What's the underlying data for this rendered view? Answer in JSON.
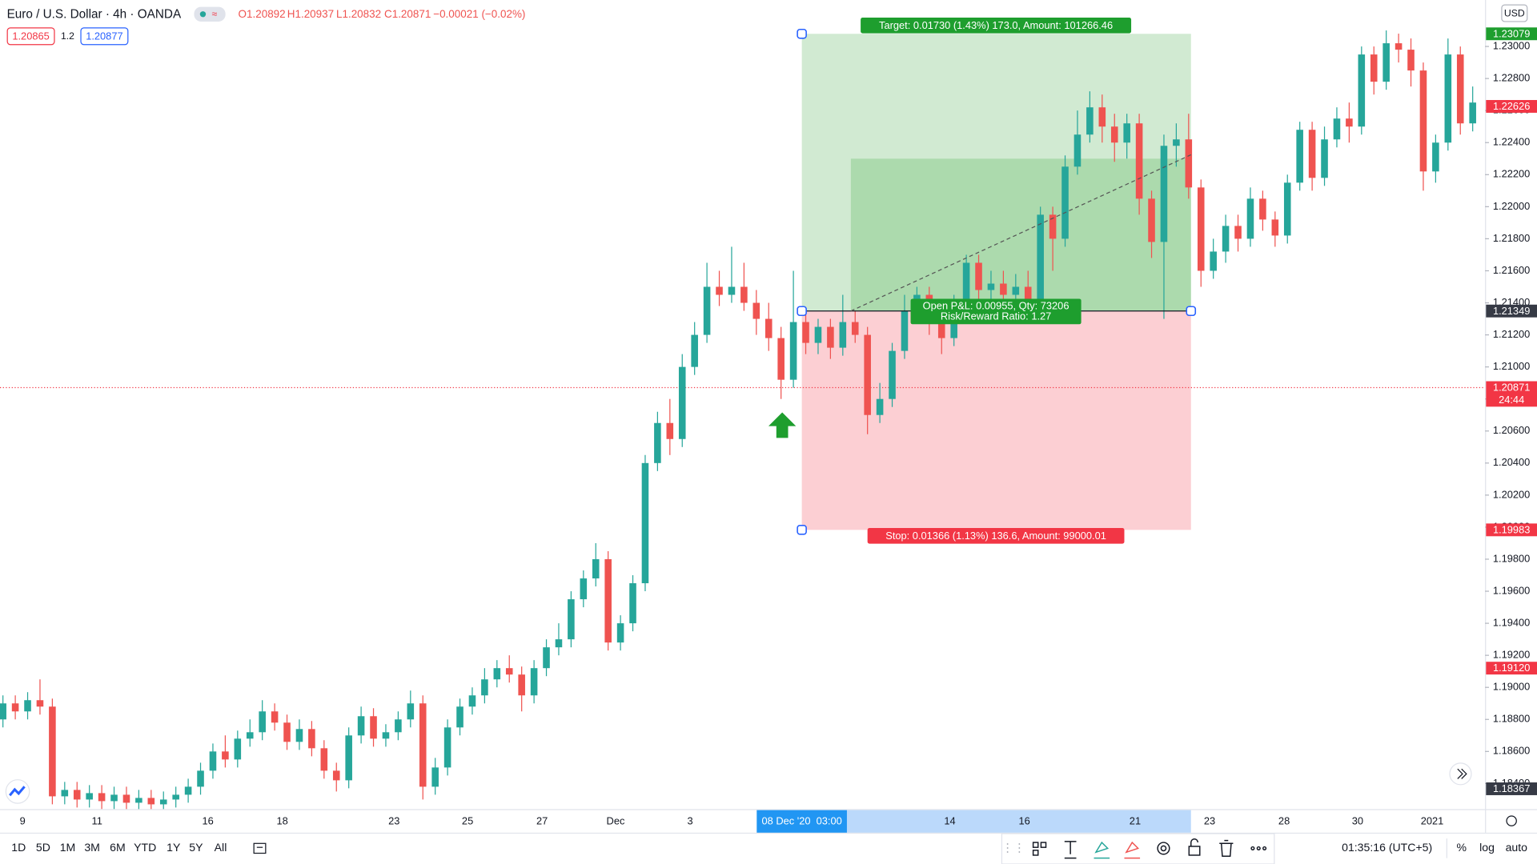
{
  "header": {
    "symbol": "Euro / U.S. Dollar · 4h · OANDA",
    "open": "O1.20892",
    "high": "H1.20937",
    "low": "L1.20832",
    "close": "C1.20871",
    "change": "−0.00021 (−0.02%)",
    "bid": "1.20865",
    "spread": "1.2",
    "ask": "1.20877"
  },
  "currency": "USD",
  "chart_data": {
    "type": "candlestick",
    "open": [
      1.188,
      1.189,
      1.1885,
      1.1892,
      1.1888,
      1.1832,
      1.1836,
      1.183,
      1.1834,
      1.1829,
      1.1833,
      1.1828,
      1.1831,
      1.1827,
      1.183,
      1.1833,
      1.1838,
      1.1848,
      1.186,
      1.1855,
      1.1868,
      1.1872,
      1.1885,
      1.1878,
      1.1866,
      1.1874,
      1.1862,
      1.1848,
      1.1842,
      1.187,
      1.1882,
      1.1868,
      1.1872,
      1.188,
      1.189,
      1.1838,
      1.185,
      1.1875,
      1.1888,
      1.1895,
      1.1905,
      1.1912,
      1.1908,
      1.1895,
      1.1912,
      1.1925,
      1.193,
      1.1955,
      1.1968,
      1.198,
      1.1928,
      1.194,
      1.1965,
      1.204,
      1.2065,
      1.2055,
      1.21,
      1.212,
      1.215,
      1.2145,
      1.215,
      1.214,
      1.213,
      1.2118,
      1.2092,
      1.2128,
      1.2115,
      1.2125,
      1.2112,
      1.2128,
      1.212,
      1.207,
      1.208,
      1.211,
      1.2135,
      1.2145,
      1.2128,
      1.2118,
      1.214,
      1.2165,
      1.2148,
      1.2152,
      1.2145,
      1.215,
      1.2142,
      1.2195,
      1.218,
      1.2225,
      1.2245,
      1.2262,
      1.225,
      1.224,
      1.2252,
      1.2205,
      1.2178,
      1.2238,
      1.2242,
      1.2212,
      1.216,
      1.2172,
      1.2188,
      1.218,
      1.2205,
      1.2192,
      1.2182,
      1.2215,
      1.2248,
      1.2218,
      1.2242,
      1.2255,
      1.225,
      1.2295,
      1.2278,
      1.2302,
      1.2298,
      1.2285,
      1.2222,
      1.224,
      1.2295,
      1.2252
    ],
    "high": [
      1.1895,
      1.1895,
      1.1897,
      1.1905,
      1.1893,
      1.1841,
      1.1841,
      1.1839,
      1.1839,
      1.1838,
      1.1838,
      1.1836,
      1.1836,
      1.1835,
      1.1838,
      1.1843,
      1.1853,
      1.1865,
      1.187,
      1.1873,
      1.188,
      1.1892,
      1.189,
      1.1883,
      1.188,
      1.1879,
      1.1867,
      1.1853,
      1.1875,
      1.1888,
      1.1887,
      1.1877,
      1.1885,
      1.1898,
      1.1895,
      1.1856,
      1.188,
      1.1893,
      1.19,
      1.1912,
      1.1917,
      1.192,
      1.1913,
      1.1917,
      1.193,
      1.194,
      1.196,
      1.1973,
      1.199,
      1.1985,
      1.1945,
      1.197,
      1.2045,
      1.2072,
      1.208,
      1.2108,
      1.2128,
      1.2165,
      1.216,
      1.2175,
      1.2165,
      1.2148,
      1.214,
      1.2125,
      1.216,
      1.2133,
      1.213,
      1.213,
      1.2145,
      1.2135,
      1.2125,
      1.209,
      1.2115,
      1.2145,
      1.215,
      1.215,
      1.2133,
      1.2145,
      1.217,
      1.217,
      1.216,
      1.216,
      1.2158,
      1.216,
      1.22,
      1.22,
      1.2232,
      1.226,
      1.2272,
      1.227,
      1.2258,
      1.2258,
      1.2258,
      1.221,
      1.2245,
      1.2252,
      1.2258,
      1.2217,
      1.218,
      1.2195,
      1.2195,
      1.2212,
      1.221,
      1.2197,
      1.222,
      1.2253,
      1.2253,
      1.225,
      1.2262,
      1.2265,
      1.23,
      1.23,
      1.231,
      1.2308,
      1.2305,
      1.229,
      1.2245,
      1.2305,
      1.23,
      1.2275
    ],
    "low": [
      1.1875,
      1.188,
      1.188,
      1.1883,
      1.1827,
      1.1827,
      1.1825,
      1.1825,
      1.1824,
      1.1824,
      1.1823,
      1.1823,
      1.1822,
      1.1822,
      1.1825,
      1.1828,
      1.1833,
      1.1843,
      1.185,
      1.185,
      1.1863,
      1.1867,
      1.1873,
      1.1861,
      1.1861,
      1.1857,
      1.1843,
      1.1835,
      1.1837,
      1.1865,
      1.1863,
      1.1863,
      1.1867,
      1.1875,
      1.183,
      1.1833,
      1.1845,
      1.187,
      1.1883,
      1.189,
      1.19,
      1.1903,
      1.1885,
      1.189,
      1.1907,
      1.192,
      1.1925,
      1.195,
      1.1963,
      1.1923,
      1.1923,
      1.1935,
      1.196,
      1.2035,
      1.2045,
      1.205,
      1.2095,
      1.2115,
      1.2138,
      1.214,
      1.2135,
      1.212,
      1.211,
      1.208,
      1.2087,
      1.2108,
      1.2108,
      1.2105,
      1.2107,
      1.2115,
      1.2058,
      1.2065,
      1.2075,
      1.2105,
      1.213,
      1.212,
      1.2108,
      1.2113,
      1.2135,
      1.214,
      1.2138,
      1.2135,
      1.213,
      1.2135,
      1.2137,
      1.216,
      1.2175,
      1.222,
      1.224,
      1.224,
      1.2228,
      1.223,
      1.2195,
      1.2168,
      1.213,
      1.2225,
      1.2205,
      1.215,
      1.2155,
      1.2165,
      1.2172,
      1.2175,
      1.2185,
      1.2175,
      1.2177,
      1.221,
      1.221,
      1.2213,
      1.2237,
      1.224,
      1.2245,
      1.227,
      1.2273,
      1.229,
      1.2275,
      1.221,
      1.2215,
      1.2235,
      1.2245,
      1.2247
    ],
    "close": [
      1.189,
      1.1885,
      1.1892,
      1.1888,
      1.1832,
      1.1836,
      1.183,
      1.1834,
      1.1829,
      1.1833,
      1.1828,
      1.1831,
      1.1827,
      1.183,
      1.1833,
      1.1838,
      1.1848,
      1.186,
      1.1855,
      1.1868,
      1.1872,
      1.1885,
      1.1878,
      1.1866,
      1.1874,
      1.1862,
      1.1848,
      1.1842,
      1.187,
      1.1882,
      1.1868,
      1.1872,
      1.188,
      1.189,
      1.1838,
      1.185,
      1.1875,
      1.1888,
      1.1895,
      1.1905,
      1.1912,
      1.1908,
      1.1895,
      1.1912,
      1.1925,
      1.193,
      1.1955,
      1.1968,
      1.198,
      1.1928,
      1.194,
      1.1965,
      1.204,
      1.2065,
      1.2055,
      1.21,
      1.212,
      1.215,
      1.2145,
      1.215,
      1.214,
      1.213,
      1.2118,
      1.2092,
      1.2128,
      1.2115,
      1.2125,
      1.2112,
      1.2128,
      1.212,
      1.207,
      1.208,
      1.211,
      1.2135,
      1.2145,
      1.2128,
      1.2118,
      1.214,
      1.2165,
      1.2148,
      1.2152,
      1.2145,
      1.215,
      1.2142,
      1.2195,
      1.218,
      1.2225,
      1.2245,
      1.2262,
      1.225,
      1.224,
      1.2252,
      1.2205,
      1.2178,
      1.2238,
      1.2242,
      1.2212,
      1.216,
      1.2172,
      1.2188,
      1.218,
      1.2205,
      1.2192,
      1.2182,
      1.2215,
      1.2248,
      1.2218,
      1.2242,
      1.2255,
      1.225,
      1.2295,
      1.2278,
      1.2302,
      1.2298,
      1.2285,
      1.2222,
      1.224,
      1.2295,
      1.2252,
      1.2265
    ],
    "up_color": "#26a69a",
    "down_color": "#ef5350",
    "ylim": [
      1.1824,
      1.2329
    ],
    "yticks": [
      {
        "value": 1.184,
        "label": "1.18400"
      },
      {
        "value": 1.186,
        "label": "1.18600"
      },
      {
        "value": 1.188,
        "label": "1.18800"
      },
      {
        "value": 1.19,
        "label": "1.19000"
      },
      {
        "value": 1.192,
        "label": "1.19200"
      },
      {
        "value": 1.194,
        "label": "1.19400"
      },
      {
        "value": 1.196,
        "label": "1.19600"
      },
      {
        "value": 1.198,
        "label": "1.19800"
      },
      {
        "value": 1.2,
        "label": "1.20000"
      },
      {
        "value": 1.202,
        "label": "1.20200"
      },
      {
        "value": 1.204,
        "label": "1.20400"
      },
      {
        "value": 1.206,
        "label": "1.20600"
      },
      {
        "value": 1.208,
        "label": "1.20800"
      },
      {
        "value": 1.21,
        "label": "1.21000"
      },
      {
        "value": 1.212,
        "label": "1.21200"
      },
      {
        "value": 1.214,
        "label": "1.21400"
      },
      {
        "value": 1.216,
        "label": "1.21600"
      },
      {
        "value": 1.218,
        "label": "1.21800"
      },
      {
        "value": 1.22,
        "label": "1.22000"
      },
      {
        "value": 1.222,
        "label": "1.22200"
      },
      {
        "value": 1.224,
        "label": "1.22400"
      },
      {
        "value": 1.226,
        "label": "1.22600"
      },
      {
        "value": 1.228,
        "label": "1.22800"
      },
      {
        "value": 1.23,
        "label": "1.23000"
      }
    ],
    "grid": false,
    "x_labels": [
      "9",
      "11",
      "16",
      "18",
      "23",
      "25",
      "27",
      "Dec",
      "3",
      "14",
      "16",
      "21",
      "23",
      "28",
      "30",
      "2021"
    ],
    "cursor_time": "08 Dec '20  03:00"
  },
  "price_labels": [
    {
      "value": 1.23079,
      "color": "#1e9e2e"
    },
    {
      "value": 1.22626,
      "color": "#f23645"
    },
    {
      "value": 1.21349,
      "color": "#363a45"
    },
    {
      "value": 1.20871,
      "color": "#f23645",
      "countdown": "24:44"
    },
    {
      "value": 1.19983,
      "color": "#f23645"
    },
    {
      "value": 1.1912,
      "label": "1.19120",
      "color": "#f23645"
    },
    {
      "value": 1.18367,
      "color": "#363a45"
    }
  ],
  "position": {
    "entry": 1.21349,
    "target": 1.23079,
    "stop": 1.19983,
    "target_label": "Target: 0.01730 (1.43%) 173.0, Amount: 101266.46",
    "pnl_label": "Open P&L: 0.00955, Qty: 73206",
    "ratio_label": "Risk/Reward Ratio: 1.27",
    "stop_label": "Stop: 0.01366 (1.13%) 136.6, Amount: 99000.01"
  },
  "toolbar": {
    "ranges": [
      "1D",
      "5D",
      "1M",
      "3M",
      "6M",
      "YTD",
      "1Y",
      "5Y",
      "All"
    ],
    "clock": "01:35:16 (UTC+5)",
    "percent": "%",
    "log": "log",
    "auto": "auto"
  }
}
